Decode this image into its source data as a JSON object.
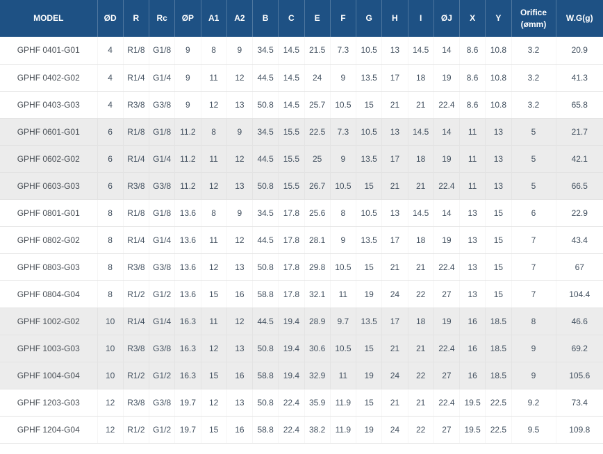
{
  "colors": {
    "header_bg": "#1e5184",
    "header_text": "#ffffff",
    "row_shaded_bg": "#ececec",
    "body_text": "#42505f",
    "border": "#e3e3e3"
  },
  "chart_data": {
    "type": "table",
    "columns": [
      "MODEL",
      "ØD",
      "R",
      "Rc",
      "ØP",
      "A1",
      "A2",
      "B",
      "C",
      "E",
      "F",
      "G",
      "H",
      "I",
      "ØJ",
      "X",
      "Y",
      "Orifice (ømm)",
      "W.G(g)"
    ],
    "rows": [
      [
        "GPHF 0401-G01",
        "4",
        "R1/8",
        "G1/8",
        "9",
        "8",
        "9",
        "34.5",
        "14.5",
        "21.5",
        "7.3",
        "10.5",
        "13",
        "14.5",
        "14",
        "8.6",
        "10.8",
        "3.2",
        "20.9"
      ],
      [
        "GPHF 0402-G02",
        "4",
        "R1/4",
        "G1/4",
        "9",
        "11",
        "12",
        "44.5",
        "14.5",
        "24",
        "9",
        "13.5",
        "17",
        "18",
        "19",
        "8.6",
        "10.8",
        "3.2",
        "41.3"
      ],
      [
        "GPHF 0403-G03",
        "4",
        "R3/8",
        "G3/8",
        "9",
        "12",
        "13",
        "50.8",
        "14.5",
        "25.7",
        "10.5",
        "15",
        "21",
        "21",
        "22.4",
        "8.6",
        "10.8",
        "3.2",
        "65.8"
      ],
      [
        "GPHF 0601-G01",
        "6",
        "R1/8",
        "G1/8",
        "11.2",
        "8",
        "9",
        "34.5",
        "15.5",
        "22.5",
        "7.3",
        "10.5",
        "13",
        "14.5",
        "14",
        "11",
        "13",
        "5",
        "21.7"
      ],
      [
        "GPHF 0602-G02",
        "6",
        "R1/4",
        "G1/4",
        "11.2",
        "11",
        "12",
        "44.5",
        "15.5",
        "25",
        "9",
        "13.5",
        "17",
        "18",
        "19",
        "11",
        "13",
        "5",
        "42.1"
      ],
      [
        "GPHF 0603-G03",
        "6",
        "R3/8",
        "G3/8",
        "11.2",
        "12",
        "13",
        "50.8",
        "15.5",
        "26.7",
        "10.5",
        "15",
        "21",
        "21",
        "22.4",
        "11",
        "13",
        "5",
        "66.5"
      ],
      [
        "GPHF 0801-G01",
        "8",
        "R1/8",
        "G1/8",
        "13.6",
        "8",
        "9",
        "34.5",
        "17.8",
        "25.6",
        "8",
        "10.5",
        "13",
        "14.5",
        "14",
        "13",
        "15",
        "6",
        "22.9"
      ],
      [
        "GPHF 0802-G02",
        "8",
        "R1/4",
        "G1/4",
        "13.6",
        "11",
        "12",
        "44.5",
        "17.8",
        "28.1",
        "9",
        "13.5",
        "17",
        "18",
        "19",
        "13",
        "15",
        "7",
        "43.4"
      ],
      [
        "GPHF 0803-G03",
        "8",
        "R3/8",
        "G3/8",
        "13.6",
        "12",
        "13",
        "50.8",
        "17.8",
        "29.8",
        "10.5",
        "15",
        "21",
        "21",
        "22.4",
        "13",
        "15",
        "7",
        "67"
      ],
      [
        "GPHF 0804-G04",
        "8",
        "R1/2",
        "G1/2",
        "13.6",
        "15",
        "16",
        "58.8",
        "17.8",
        "32.1",
        "11",
        "19",
        "24",
        "22",
        "27",
        "13",
        "15",
        "7",
        "104.4"
      ],
      [
        "GPHF 1002-G02",
        "10",
        "R1/4",
        "G1/4",
        "16.3",
        "11",
        "12",
        "44.5",
        "19.4",
        "28.9",
        "9.7",
        "13.5",
        "17",
        "18",
        "19",
        "16",
        "18.5",
        "8",
        "46.6"
      ],
      [
        "GPHF 1003-G03",
        "10",
        "R3/8",
        "G3/8",
        "16.3",
        "12",
        "13",
        "50.8",
        "19.4",
        "30.6",
        "10.5",
        "15",
        "21",
        "21",
        "22.4",
        "16",
        "18.5",
        "9",
        "69.2"
      ],
      [
        "GPHF 1004-G04",
        "10",
        "R1/2",
        "G1/2",
        "16.3",
        "15",
        "16",
        "58.8",
        "19.4",
        "32.9",
        "11",
        "19",
        "24",
        "22",
        "27",
        "16",
        "18.5",
        "9",
        "105.6"
      ],
      [
        "GPHF 1203-G03",
        "12",
        "R3/8",
        "G3/8",
        "19.7",
        "12",
        "13",
        "50.8",
        "22.4",
        "35.9",
        "11.9",
        "15",
        "21",
        "21",
        "22.4",
        "19.5",
        "22.5",
        "9.2",
        "73.4"
      ],
      [
        "GPHF 1204-G04",
        "12",
        "R1/2",
        "G1/2",
        "19.7",
        "15",
        "16",
        "58.8",
        "22.4",
        "38.2",
        "11.9",
        "19",
        "24",
        "22",
        "27",
        "19.5",
        "22.5",
        "9.5",
        "109.8"
      ]
    ]
  }
}
